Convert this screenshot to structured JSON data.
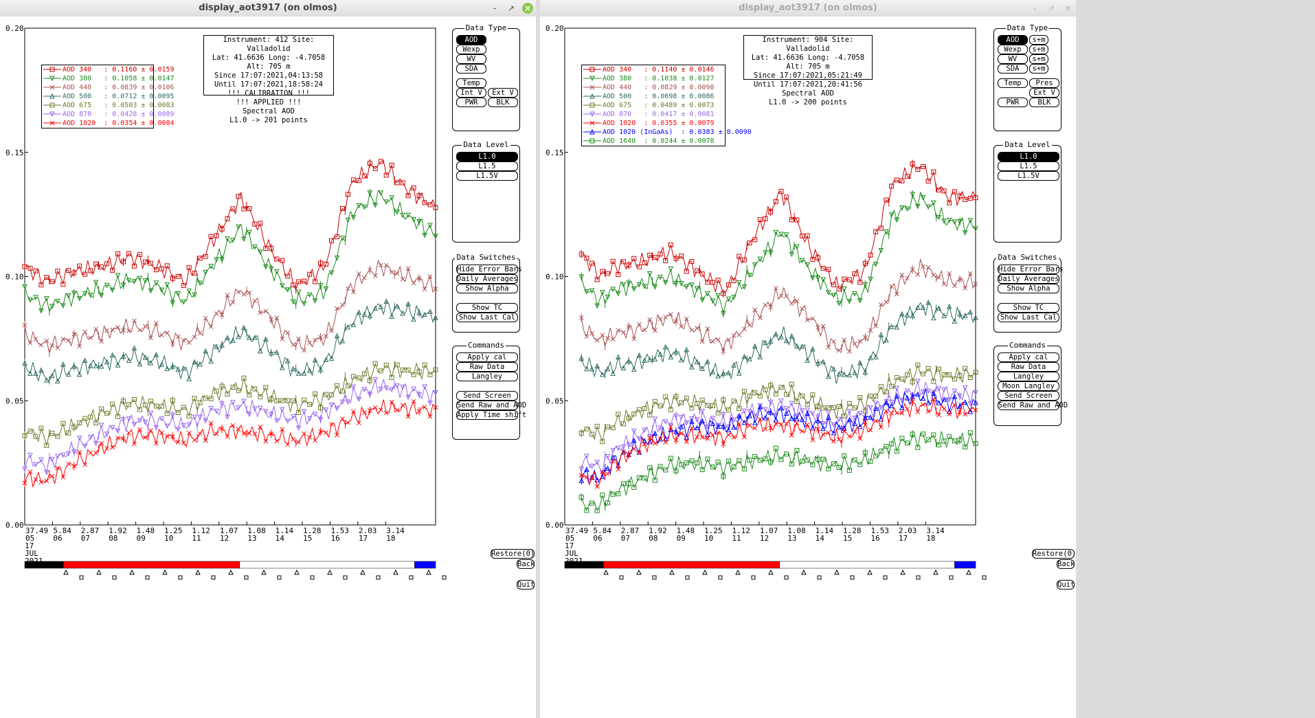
{
  "colors": {
    "aod340": "#cc0000",
    "aod380": "#1a8a1a",
    "aod440": "#a85050",
    "aod500": "#2e6b5f",
    "aod675": "#6b7a2a",
    "aod870": "#9966ee",
    "aod1020": "#ff0000",
    "aod1020ingaas": "#0000ff",
    "aod1640": "#1a8a1a",
    "bar_black": "#000000",
    "bar_red": "#ff0000",
    "bar_blue": "#0000ff"
  },
  "left_window": {
    "title": "display_aot3917 (on olmos)",
    "controls": {
      "minimize": "-",
      "maximize": "↗",
      "close": "×"
    },
    "info": [
      "Instrument: 412 Site: Valladolid",
      "Lat: 41.6636 Long: -4.7058 Alt: 705 m",
      "Since 17:07:2021,04:13:58",
      "Until 17:07:2021,18:58:24",
      "!!! CALIBRATION !!!",
      "!!!   APPLIED   !!!",
      "Spectral AOD",
      "L1.0 -> 201 points"
    ],
    "legend": [
      {
        "label": "AOD 340   : 0.1160 ± 0.0159",
        "color": "#cc0000",
        "marker": "square"
      },
      {
        "label": "AOD 380   : 0.1058 ± 0.0147",
        "color": "#1a8a1a",
        "marker": "tri-down"
      },
      {
        "label": "AOD 440   : 0.0839 ± 0.0106",
        "color": "#a85050",
        "marker": "x"
      },
      {
        "label": "AOD 500   : 0.0712 ± 0.0095",
        "color": "#2e6b5f",
        "marker": "tri-up"
      },
      {
        "label": "AOD 675   : 0.0503 ± 0.0083",
        "color": "#6b7a2a",
        "marker": "square"
      },
      {
        "label": "AOD 870   : 0.0428 ± 0.0089",
        "color": "#9966ee",
        "marker": "tri-down"
      },
      {
        "label": "AOD 1020  : 0.0354 ± 0.0084",
        "color": "#ff0000",
        "marker": "x"
      }
    ],
    "data_type": {
      "title": "Data Type",
      "buttons": [
        "AOD",
        "Wexp",
        "WV",
        "SDA",
        "Temp",
        "Int V",
        "Ext V",
        "PWR",
        "BLK"
      ]
    },
    "data_level": {
      "title": "Data Level",
      "buttons": [
        "L1.0",
        "L1.5",
        "L1.5V"
      ]
    },
    "data_switches": {
      "title": "Data Switches",
      "buttons": [
        "Hide Error Bars",
        "Daily Averages",
        "Show Alpha",
        "Show TC",
        "Show Last Cal"
      ]
    },
    "commands": {
      "title": "Commands",
      "buttons": [
        "Apply cal",
        "Raw Data",
        "Langley",
        "Send Screen",
        "Send Raw and AOD",
        "Apply Time shift"
      ]
    },
    "nav": {
      "restore": "Restore(0)",
      "back": "Back",
      "quit": "Quit"
    }
  },
  "right_window": {
    "title": "display_aot3917 (on olmos)",
    "controls": {
      "minimize": "-",
      "maximize": "↗",
      "close": "×"
    },
    "info": [
      "Instrument: 904 Site: Valladolid",
      "Lat: 41.6636 Long: -4.7058 Alt: 705 m",
      "Since 17:07:2021,05:21:49",
      "Until 17:07:2021,20:41:56",
      "Spectral AOD",
      "L1.0 -> 200 points"
    ],
    "legend": [
      {
        "label": "AOD 340   : 0.1140 ± 0.0146",
        "color": "#cc0000",
        "marker": "square"
      },
      {
        "label": "AOD 380   : 0.1038 ± 0.0127",
        "color": "#1a8a1a",
        "marker": "tri-down"
      },
      {
        "label": "AOD 440   : 0.0829 ± 0.0098",
        "color": "#a85050",
        "marker": "x"
      },
      {
        "label": "AOD 500   : 0.0698 ± 0.0086",
        "color": "#2e6b5f",
        "marker": "tri-up"
      },
      {
        "label": "AOD 675   : 0.0489 ± 0.0073",
        "color": "#6b7a2a",
        "marker": "square"
      },
      {
        "label": "AOD 870   : 0.0417 ± 0.0081",
        "color": "#9966ee",
        "marker": "tri-down"
      },
      {
        "label": "AOD 1020  : 0.0355 ± 0.0079",
        "color": "#ff0000",
        "marker": "x"
      },
      {
        "label": "AOD 1020 (InGaAs)  : 0.0383 ± 0.0090",
        "color": "#0000ff",
        "marker": "tri-up"
      },
      {
        "label": "AOD 1640  : 0.0244 ± 0.0078",
        "color": "#1a8a1a",
        "marker": "square"
      }
    ],
    "data_type": {
      "title": "Data Type",
      "buttons": [
        "AOD",
        "Wexp",
        "WV",
        "SDA",
        "Temp",
        "Pres",
        "Ext V",
        "PWR",
        "BLK"
      ],
      "spm": [
        "s+m",
        "s+m",
        "s+m",
        "s+m"
      ]
    },
    "data_level": {
      "title": "Data Level",
      "buttons": [
        "L1.0",
        "L1.5",
        "L1.5V"
      ]
    },
    "data_switches": {
      "title": "Data Switches",
      "buttons": [
        "Hide Error Bars",
        "Daily Averages",
        "Show Alpha",
        "Show TC",
        "Show Last Cal"
      ]
    },
    "commands": {
      "title": "Commands",
      "buttons": [
        "Apply cal",
        "Raw Data",
        "Langley",
        "Moon Langley",
        "Send Screen",
        "Send Raw and AOD"
      ]
    },
    "nav": {
      "restore": "Restore(0)",
      "back": "Back",
      "quit": "Quit"
    }
  },
  "chart_data": [
    {
      "type": "line",
      "ylim": [
        0,
        0.2
      ],
      "yticks": [
        "0.20",
        "0.15",
        "0.10",
        "0.05",
        "0.00"
      ],
      "x_hours_range": [
        4.2,
        19.0
      ],
      "xticks": [
        {
          "air": "37.49",
          "hr": "05",
          "x": 4.2
        },
        {
          "air": "5.84",
          "hr": "06",
          "x": 5.2
        },
        {
          "air": "2.87",
          "hr": "07",
          "x": 6.2
        },
        {
          "air": "1.92",
          "hr": "08",
          "x": 7.2
        },
        {
          "air": "1.48",
          "hr": "09",
          "x": 8.2
        },
        {
          "air": "1.25",
          "hr": "10",
          "x": 9.2
        },
        {
          "air": "1.12",
          "hr": "11",
          "x": 10.2
        },
        {
          "air": "1.07",
          "hr": "12",
          "x": 11.2
        },
        {
          "air": "1.08",
          "hr": "13",
          "x": 12.2
        },
        {
          "air": "1.14",
          "hr": "14",
          "x": 13.2
        },
        {
          "air": "1.28",
          "hr": "15",
          "x": 14.2
        },
        {
          "air": "1.53",
          "hr": "16",
          "x": 15.2
        },
        {
          "air": "2.03",
          "hr": "17",
          "x": 16.2
        },
        {
          "air": "3.14",
          "hr": "18",
          "x": 17.2
        }
      ],
      "date_label": [
        "17",
        "JUL",
        "2021"
      ],
      "x": [
        4.2,
        5.0,
        6.0,
        7.0,
        8.0,
        9.0,
        10.0,
        11.0,
        12.0,
        13.0,
        14.0,
        15.0,
        16.0,
        17.0,
        18.0,
        19.0
      ],
      "series": [
        {
          "name": "AOD 340",
          "color": "#cc0000",
          "values": [
            0.104,
            0.098,
            0.102,
            0.104,
            0.108,
            0.104,
            0.098,
            0.115,
            0.132,
            0.112,
            0.096,
            0.104,
            0.138,
            0.146,
            0.135,
            0.128
          ]
        },
        {
          "name": "AOD 380",
          "color": "#1a8a1a",
          "values": [
            0.093,
            0.088,
            0.092,
            0.095,
            0.099,
            0.096,
            0.09,
            0.105,
            0.12,
            0.104,
            0.09,
            0.094,
            0.126,
            0.133,
            0.124,
            0.117
          ]
        },
        {
          "name": "AOD 440",
          "color": "#a85050",
          "values": [
            0.077,
            0.072,
            0.075,
            0.077,
            0.08,
            0.078,
            0.073,
            0.083,
            0.095,
            0.084,
            0.072,
            0.075,
            0.097,
            0.104,
            0.1,
            0.096
          ]
        },
        {
          "name": "AOD 500",
          "color": "#2e6b5f",
          "values": [
            0.064,
            0.059,
            0.063,
            0.065,
            0.068,
            0.066,
            0.061,
            0.07,
            0.078,
            0.071,
            0.061,
            0.065,
            0.082,
            0.088,
            0.086,
            0.084
          ]
        },
        {
          "name": "AOD 675",
          "color": "#6b7a2a",
          "values": [
            0.038,
            0.035,
            0.04,
            0.045,
            0.049,
            0.048,
            0.046,
            0.053,
            0.056,
            0.052,
            0.048,
            0.051,
            0.058,
            0.063,
            0.062,
            0.062
          ]
        },
        {
          "name": "AOD 870",
          "color": "#9966ee",
          "values": [
            0.026,
            0.024,
            0.031,
            0.037,
            0.042,
            0.042,
            0.04,
            0.046,
            0.048,
            0.045,
            0.042,
            0.045,
            0.052,
            0.056,
            0.054,
            0.052
          ]
        },
        {
          "name": "AOD 1020",
          "color": "#ff0000",
          "values": [
            0.019,
            0.018,
            0.025,
            0.031,
            0.036,
            0.036,
            0.034,
            0.038,
            0.038,
            0.036,
            0.034,
            0.037,
            0.043,
            0.047,
            0.047,
            0.046
          ]
        }
      ]
    },
    {
      "type": "line",
      "ylim": [
        0,
        0.2
      ],
      "yticks": [
        "0.20",
        "0.15",
        "0.10",
        "0.05",
        "0.00"
      ],
      "x_hours_range": [
        4.2,
        19.0
      ],
      "xticks": [
        {
          "air": "37.49",
          "hr": "05",
          "x": 4.2
        },
        {
          "air": "5.84",
          "hr": "06",
          "x": 5.2
        },
        {
          "air": "2.87",
          "hr": "07",
          "x": 6.2
        },
        {
          "air": "1.92",
          "hr": "08",
          "x": 7.2
        },
        {
          "air": "1.48",
          "hr": "09",
          "x": 8.2
        },
        {
          "air": "1.25",
          "hr": "10",
          "x": 9.2
        },
        {
          "air": "1.12",
          "hr": "11",
          "x": 10.2
        },
        {
          "air": "1.07",
          "hr": "12",
          "x": 11.2
        },
        {
          "air": "1.08",
          "hr": "13",
          "x": 12.2
        },
        {
          "air": "1.14",
          "hr": "14",
          "x": 13.2
        },
        {
          "air": "1.28",
          "hr": "15",
          "x": 14.2
        },
        {
          "air": "1.53",
          "hr": "16",
          "x": 15.2
        },
        {
          "air": "2.03",
          "hr": "17",
          "x": 16.2
        },
        {
          "air": "3.14",
          "hr": "18",
          "x": 17.2
        }
      ],
      "date_label": [
        "17",
        "JUL",
        "2021"
      ],
      "x": [
        4.8,
        5.5,
        6.0,
        7.0,
        8.0,
        9.0,
        10.0,
        11.0,
        12.0,
        13.0,
        14.0,
        15.0,
        16.0,
        17.0,
        18.0,
        19.0
      ],
      "series": [
        {
          "name": "AOD 340",
          "color": "#cc0000",
          "values": [
            0.109,
            0.1,
            0.104,
            0.106,
            0.11,
            0.102,
            0.094,
            0.116,
            0.134,
            0.112,
            0.096,
            0.102,
            0.137,
            0.145,
            0.132,
            0.132
          ]
        },
        {
          "name": "AOD 380",
          "color": "#1a8a1a",
          "values": [
            0.097,
            0.09,
            0.095,
            0.097,
            0.1,
            0.094,
            0.088,
            0.103,
            0.118,
            0.103,
            0.091,
            0.093,
            0.124,
            0.132,
            0.122,
            0.12
          ]
        },
        {
          "name": "AOD 440",
          "color": "#a85050",
          "values": [
            0.08,
            0.074,
            0.077,
            0.079,
            0.084,
            0.078,
            0.072,
            0.083,
            0.094,
            0.084,
            0.071,
            0.074,
            0.095,
            0.104,
            0.098,
            0.098
          ]
        },
        {
          "name": "AOD 500",
          "color": "#2e6b5f",
          "values": [
            0.066,
            0.061,
            0.064,
            0.066,
            0.07,
            0.065,
            0.06,
            0.069,
            0.077,
            0.069,
            0.06,
            0.063,
            0.08,
            0.088,
            0.085,
            0.084
          ]
        },
        {
          "name": "AOD 675",
          "color": "#6b7a2a",
          "values": [
            0.039,
            0.036,
            0.041,
            0.046,
            0.05,
            0.049,
            0.047,
            0.053,
            0.055,
            0.05,
            0.046,
            0.049,
            0.057,
            0.062,
            0.06,
            0.061
          ]
        },
        {
          "name": "AOD 870",
          "color": "#9966ee",
          "values": [
            0.026,
            0.023,
            0.03,
            0.037,
            0.042,
            0.043,
            0.041,
            0.046,
            0.048,
            0.045,
            0.041,
            0.045,
            0.051,
            0.055,
            0.053,
            0.052
          ]
        },
        {
          "name": "AOD 1020 (InGaAs)",
          "color": "#0000ff",
          "values": [
            0.02,
            0.019,
            0.026,
            0.033,
            0.037,
            0.04,
            0.039,
            0.044,
            0.045,
            0.042,
            0.039,
            0.042,
            0.049,
            0.052,
            0.049,
            0.048
          ]
        },
        {
          "name": "AOD 1020",
          "color": "#ff0000",
          "values": [
            0.019,
            0.018,
            0.025,
            0.032,
            0.036,
            0.036,
            0.035,
            0.04,
            0.04,
            0.038,
            0.035,
            0.038,
            0.045,
            0.048,
            0.046,
            0.046
          ]
        },
        {
          "name": "AOD 1640",
          "color": "#1a8a1a",
          "values": [
            0.008,
            0.008,
            0.013,
            0.019,
            0.024,
            0.025,
            0.023,
            0.026,
            0.028,
            0.026,
            0.024,
            0.026,
            0.032,
            0.035,
            0.034,
            0.034
          ]
        }
      ]
    }
  ],
  "timebars": [
    {
      "segments": [
        {
          "color": "#000000",
          "from": 0,
          "to": 0.094
        },
        {
          "color": "#ff0000",
          "from": 0.094,
          "to": 0.523
        },
        {
          "color": "#ffffff",
          "from": 0.523,
          "to": 0.949
        },
        {
          "color": "#0000ff",
          "from": 0.949,
          "to": 1.0
        }
      ]
    },
    {
      "segments": [
        {
          "color": "#000000",
          "from": 0,
          "to": 0.094
        },
        {
          "color": "#ff0000",
          "from": 0.094,
          "to": 0.523
        },
        {
          "color": "#ffffff",
          "from": 0.523,
          "to": 0.949
        },
        {
          "color": "#0000ff",
          "from": 0.949,
          "to": 1.0
        }
      ]
    }
  ]
}
